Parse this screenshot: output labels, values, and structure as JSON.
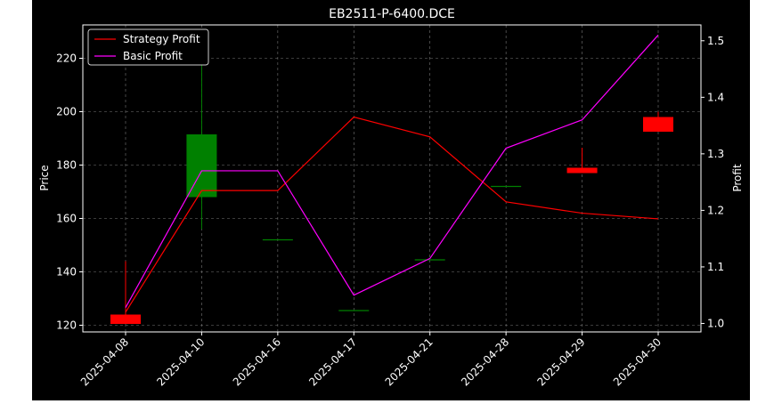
{
  "chart_data": {
    "type": "candlestick+line",
    "title": "EB2511-P-6400.DCE",
    "xlabel": "",
    "ylabel_left": "Price",
    "ylabel_right": "Profit",
    "categories": [
      "2025-04-08",
      "2025-04-10",
      "2025-04-16",
      "2025-04-17",
      "2025-04-21",
      "2025-04-28",
      "2025-04-29",
      "2025-04-30"
    ],
    "ylim_left": [
      117.5,
      232.5
    ],
    "ylim_right": [
      0.985,
      1.528
    ],
    "yticks_left": [
      120,
      140,
      160,
      180,
      200,
      220
    ],
    "yticks_right": [
      1.0,
      1.1,
      1.2,
      1.3,
      1.4,
      1.5
    ],
    "candles": [
      {
        "open": 124.0,
        "close": 120.5,
        "high": 144.0,
        "low": 120.5
      },
      {
        "open": 168.0,
        "close": 191.5,
        "high": 219.0,
        "low": 156.0
      },
      {
        "open": 152.0,
        "close": 152.0,
        "high": 152.0,
        "low": 152.0
      },
      {
        "open": 125.5,
        "close": 125.5,
        "high": 125.5,
        "low": 125.5
      },
      {
        "open": 144.5,
        "close": 144.5,
        "high": 144.5,
        "low": 144.5
      },
      {
        "open": 172.0,
        "close": 172.0,
        "high": 172.0,
        "low": 172.0
      },
      {
        "open": 179.0,
        "close": 177.0,
        "high": 186.5,
        "low": 177.0
      },
      {
        "open": 198.0,
        "close": 192.5,
        "high": 200.0,
        "low": 192.5
      }
    ],
    "series": [
      {
        "name": "Strategy Profit",
        "axis": "right",
        "color": "#ff0000",
        "values": [
          1.02,
          1.235,
          1.235,
          1.365,
          1.33,
          1.215,
          1.195,
          1.185
        ]
      },
      {
        "name": "Basic Profit",
        "axis": "right",
        "color": "#ff00ff",
        "values": [
          1.028,
          1.27,
          1.27,
          1.05,
          1.115,
          1.31,
          1.36,
          1.51
        ]
      }
    ],
    "candle_colors": {
      "up": "#008000",
      "down": "#ff0000"
    },
    "grid": true,
    "legend_placement": "top-left",
    "background": "#000000",
    "text_color": "#ffffff"
  }
}
